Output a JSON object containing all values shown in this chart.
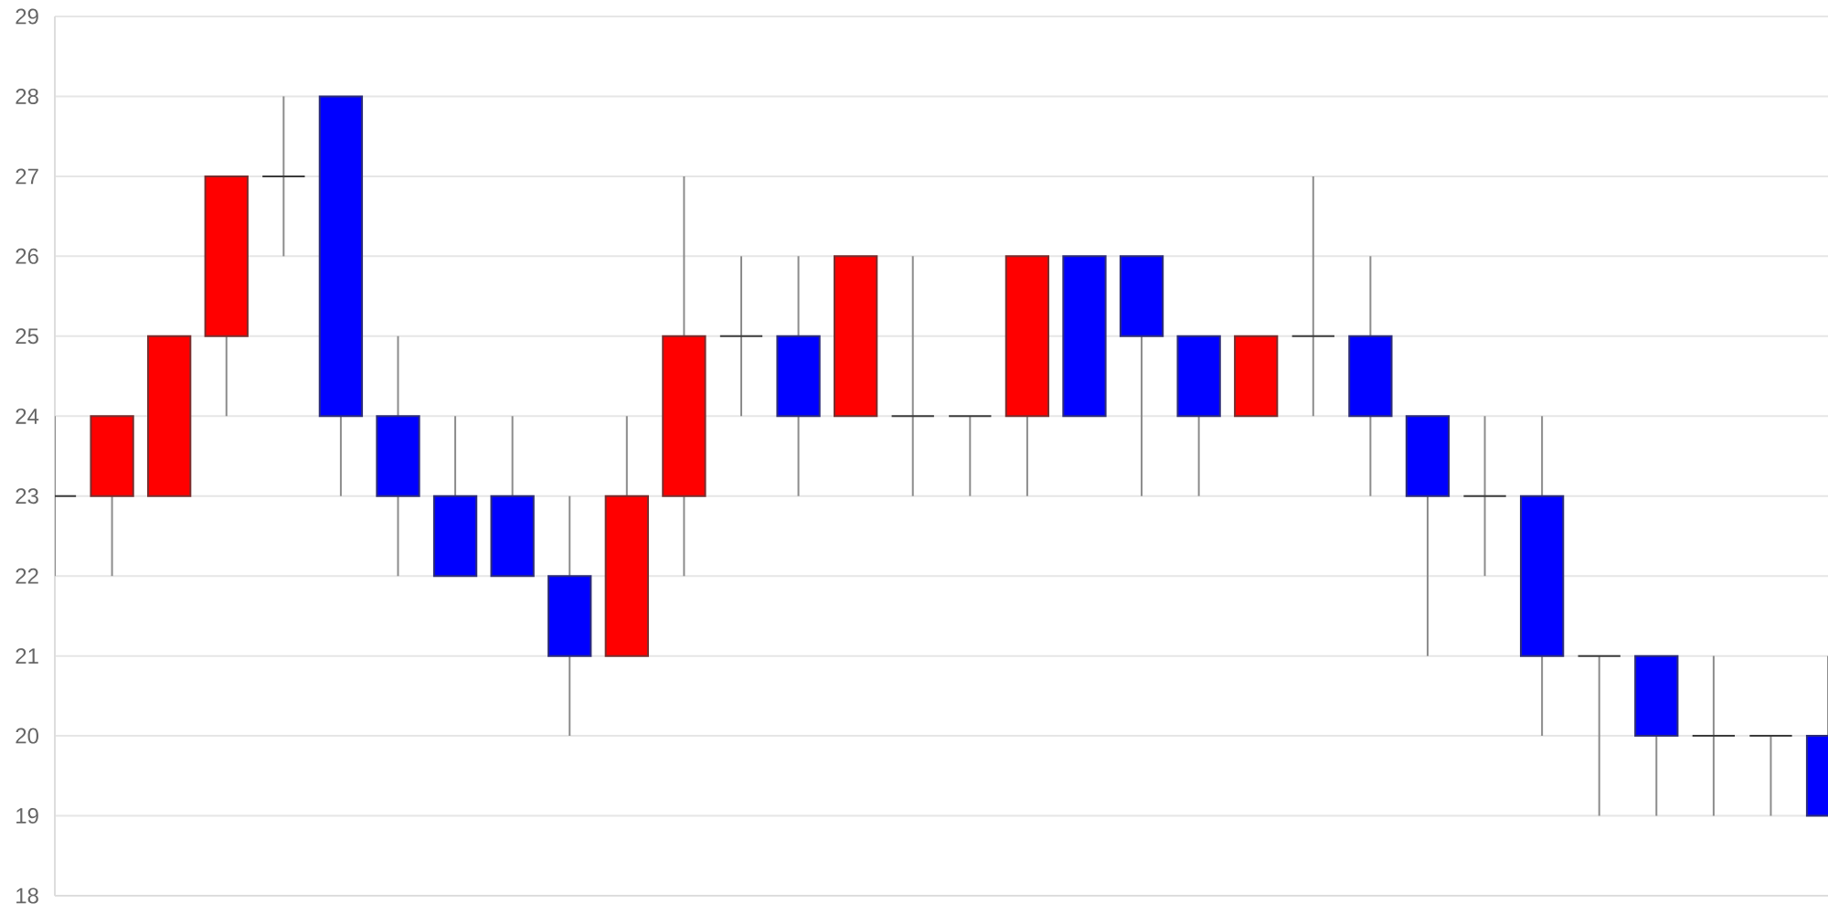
{
  "chart_data": {
    "type": "candlestick",
    "categories": [
      null,
      null,
      null,
      null,
      null,
      null,
      null,
      null,
      null,
      null,
      null,
      null,
      null,
      null,
      null,
      null,
      null,
      null,
      null,
      null,
      null,
      null,
      null,
      null,
      null,
      null,
      null,
      null,
      null,
      null,
      null,
      null
    ],
    "ohlc": [
      [
        23,
        24,
        22,
        23
      ],
      [
        23,
        24,
        22,
        24
      ],
      [
        23,
        25,
        23,
        25
      ],
      [
        25,
        27,
        24,
        27
      ],
      [
        27,
        28,
        26,
        27
      ],
      [
        28,
        28,
        23,
        24
      ],
      [
        24,
        25,
        22,
        23
      ],
      [
        23,
        24,
        22,
        22
      ],
      [
        23,
        24,
        22,
        22
      ],
      [
        22,
        23,
        20,
        21
      ],
      [
        21,
        24,
        21,
        23
      ],
      [
        23,
        27,
        22,
        25
      ],
      [
        25,
        26,
        24,
        25
      ],
      [
        25,
        26,
        23,
        24
      ],
      [
        24,
        26,
        24,
        26
      ],
      [
        24,
        26,
        23,
        24
      ],
      [
        24,
        24,
        23,
        24
      ],
      [
        24,
        26,
        23,
        26
      ],
      [
        26,
        26,
        24,
        24
      ],
      [
        26,
        26,
        23,
        25
      ],
      [
        25,
        25,
        23,
        24
      ],
      [
        24,
        25,
        24,
        25
      ],
      [
        25,
        27,
        24,
        25
      ],
      [
        25,
        26,
        23,
        24
      ],
      [
        24,
        24,
        21,
        23
      ],
      [
        23,
        24,
        22,
        23
      ],
      [
        23,
        24,
        20,
        21
      ],
      [
        21,
        21,
        19,
        21
      ],
      [
        21,
        21,
        19,
        20
      ],
      [
        20,
        21,
        19,
        20
      ],
      [
        20,
        20,
        19,
        20
      ],
      [
        20,
        21,
        19,
        19
      ]
    ],
    "colors": [
      "#333333",
      "#ff0000",
      "#ff0000",
      "#ff0000",
      "#333333",
      "#0000ff",
      "#0000ff",
      "#0000ff",
      "#0000ff",
      "#0000ff",
      "#ff0000",
      "#ff0000",
      "#333333",
      "#0000ff",
      "#ff0000",
      "#333333",
      "#333333",
      "#ff0000",
      "#0000ff",
      "#0000ff",
      "#0000ff",
      "#ff0000",
      "#333333",
      "#0000ff",
      "#0000ff",
      "#333333",
      "#0000ff",
      "#333333",
      "#0000ff",
      "#333333",
      "#333333",
      "#0000ff"
    ],
    "ylim": [
      18,
      29
    ],
    "yticks": [
      18,
      19,
      20,
      21,
      22,
      23,
      24,
      25,
      26,
      27,
      28,
      29
    ],
    "grid": "y"
  }
}
